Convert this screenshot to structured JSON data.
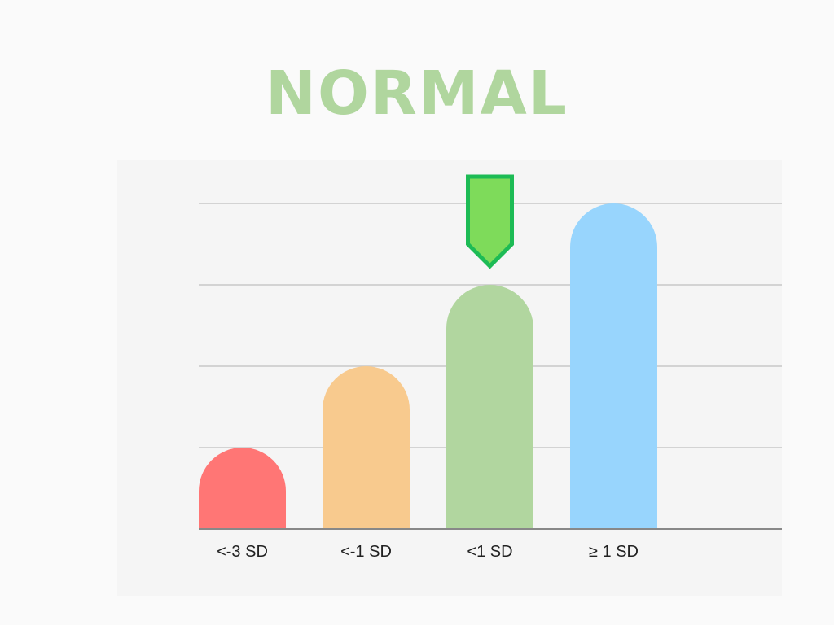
{
  "title": "NORMAL",
  "colors": {
    "title": "#b0d69e",
    "background": "#fafafa",
    "panel": "#f5f5f5",
    "gridline": "#c8c8c8",
    "axis": "#888888",
    "marker_fill": "#7edb5a",
    "marker_stroke": "#1dbb55"
  },
  "chart_data": {
    "type": "bar",
    "categories": [
      "<-3 SD",
      "<-1 SD",
      "<1 SD",
      "≥ 1 SD"
    ],
    "values": [
      1,
      2,
      3,
      4
    ],
    "bar_colors": [
      "#ff7675",
      "#f8ca8e",
      "#b1d69f",
      "#98d5fd"
    ],
    "ylim": [
      0,
      4
    ],
    "grid": true,
    "highlight_category": "<1 SD",
    "title": "",
    "xlabel": "",
    "ylabel": ""
  }
}
